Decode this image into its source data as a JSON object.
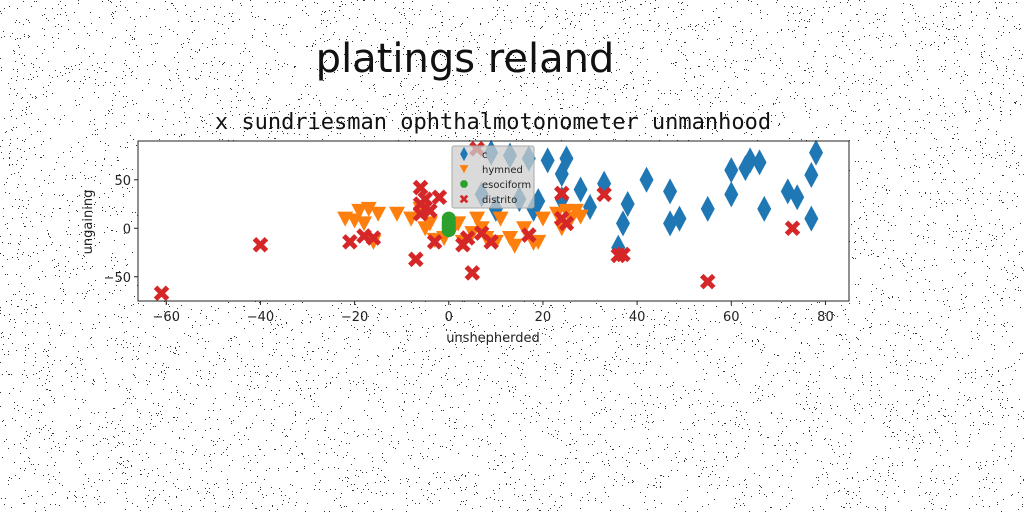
{
  "chart_data": {
    "type": "scatter",
    "title": "platings reland",
    "subtitle": "x sundriesman ophthalmotonometer unmanhood",
    "xlabel": "unshepherded",
    "ylabel": "ungaining",
    "xlim": [
      -66,
      85
    ],
    "ylim": [
      -75,
      90
    ],
    "xticks": [
      -60,
      -40,
      -20,
      0,
      20,
      40,
      60,
      80
    ],
    "yticks": [
      -50,
      0,
      50
    ],
    "grid": false,
    "legend_position": "top-center",
    "series": [
      {
        "name": "c",
        "marker": "diamond",
        "color": "#1f77b4",
        "points": [
          [
            9,
            78
          ],
          [
            13,
            75
          ],
          [
            17,
            72
          ],
          [
            21,
            70
          ],
          [
            25,
            72
          ],
          [
            28,
            40
          ],
          [
            24,
            56
          ],
          [
            33,
            46
          ],
          [
            30,
            22
          ],
          [
            24,
            30
          ],
          [
            36,
            -20
          ],
          [
            37,
            5
          ],
          [
            38,
            25
          ],
          [
            42,
            50
          ],
          [
            47,
            38
          ],
          [
            47,
            5
          ],
          [
            49,
            10
          ],
          [
            55,
            20
          ],
          [
            60,
            60
          ],
          [
            60,
            35
          ],
          [
            63,
            62
          ],
          [
            64,
            70
          ],
          [
            66,
            68
          ],
          [
            67,
            20
          ],
          [
            72,
            38
          ],
          [
            74,
            32
          ],
          [
            77,
            55
          ],
          [
            77,
            10
          ],
          [
            78,
            78
          ],
          [
            15,
            30
          ],
          [
            19,
            28
          ],
          [
            7,
            35
          ],
          [
            10,
            20
          ],
          [
            18,
            20
          ]
        ]
      },
      {
        "name": "hymned",
        "marker": "triangle-down",
        "color": "#ff7f0e",
        "points": [
          [
            -22,
            10
          ],
          [
            -20,
            8
          ],
          [
            -19,
            18
          ],
          [
            -18,
            5
          ],
          [
            -17,
            20
          ],
          [
            -16,
            -14
          ],
          [
            -15,
            15
          ],
          [
            -11,
            15
          ],
          [
            -8,
            10
          ],
          [
            -6,
            20
          ],
          [
            -5,
            0
          ],
          [
            -4,
            5
          ],
          [
            -3,
            -12
          ],
          [
            -1,
            -10
          ],
          [
            1,
            0
          ],
          [
            2,
            5
          ],
          [
            3,
            -14
          ],
          [
            5,
            -5
          ],
          [
            6,
            10
          ],
          [
            7,
            0
          ],
          [
            8,
            -10
          ],
          [
            10,
            -14
          ],
          [
            11,
            10
          ],
          [
            13,
            -10
          ],
          [
            14,
            -18
          ],
          [
            16,
            0
          ],
          [
            18,
            -15
          ],
          [
            19,
            -14
          ],
          [
            20,
            10
          ],
          [
            23,
            15
          ],
          [
            24,
            0
          ],
          [
            25,
            18
          ],
          [
            26,
            10
          ],
          [
            27,
            18
          ],
          [
            28,
            12
          ]
        ]
      },
      {
        "name": "esociform",
        "marker": "circle",
        "color": "#2ca02c",
        "points": [
          [
            0,
            10
          ],
          [
            0,
            6
          ],
          [
            0,
            2
          ],
          [
            0,
            0
          ],
          [
            0,
            -2
          ],
          [
            0,
            4
          ]
        ]
      },
      {
        "name": "distrito",
        "marker": "x",
        "color": "#d62728",
        "points": [
          [
            -61,
            -67
          ],
          [
            -40,
            -17
          ],
          [
            -21,
            -14
          ],
          [
            -18,
            -8
          ],
          [
            -16,
            -10
          ],
          [
            -7,
            -32
          ],
          [
            -6,
            42
          ],
          [
            -6,
            25
          ],
          [
            -6,
            15
          ],
          [
            -5,
            30
          ],
          [
            -4,
            18
          ],
          [
            -3,
            -14
          ],
          [
            -2,
            32
          ],
          [
            3,
            -17
          ],
          [
            4,
            -10
          ],
          [
            5,
            -46
          ],
          [
            6,
            82
          ],
          [
            7,
            -5
          ],
          [
            9,
            -14
          ],
          [
            17,
            -7
          ],
          [
            24,
            10
          ],
          [
            24,
            36
          ],
          [
            25,
            5
          ],
          [
            33,
            35
          ],
          [
            36,
            -28
          ],
          [
            37,
            -27
          ],
          [
            55,
            -55
          ],
          [
            73,
            0
          ]
        ]
      }
    ]
  }
}
